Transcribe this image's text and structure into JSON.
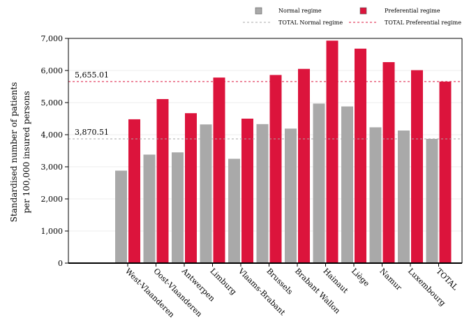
{
  "chart_data": {
    "type": "bar",
    "title": "",
    "xlabel": "",
    "ylabel": [
      "Standardised number of patients",
      "per 100,000 insured persons"
    ],
    "ylim": [
      0,
      7000
    ],
    "yticks": [
      0,
      1000,
      2000,
      3000,
      4000,
      5000,
      6000,
      7000
    ],
    "ytick_labels": [
      "0",
      "1,000",
      "2,000",
      "3,000",
      "4,000",
      "5,000",
      "6,000",
      "7,000"
    ],
    "grid": true,
    "legend_position": "top-right",
    "categories": [
      "West-Vlaanderen",
      "Oost-Vlaanderen",
      "Antwerpen",
      "Limburg",
      "Vlaams-Brabant",
      "Brussels",
      "Brabant Wallon",
      "Hainaut",
      "Liège",
      "Namur",
      "Luxembourg",
      "TOTAL"
    ],
    "series": [
      {
        "name": "Normal regime",
        "color": "#a9a9a9",
        "values": [
          2880,
          3380,
          3450,
          4320,
          3250,
          4330,
          4190,
          4970,
          4880,
          4230,
          4130,
          3870.51
        ]
      },
      {
        "name": "Preferential regime",
        "color": "#dc143c",
        "values": [
          4480,
          5110,
          4670,
          5780,
          4500,
          5860,
          6050,
          6930,
          6680,
          6260,
          6010,
          5655.01
        ]
      }
    ],
    "reference_lines": [
      {
        "name": "TOTAL Normal regime",
        "value": 3870.51,
        "label": "3,870.51",
        "color": "#a9a9a9"
      },
      {
        "name": "TOTAL Preferential regime",
        "value": 5655.01,
        "label": "5,655.01",
        "color": "#dc143c"
      }
    ]
  }
}
